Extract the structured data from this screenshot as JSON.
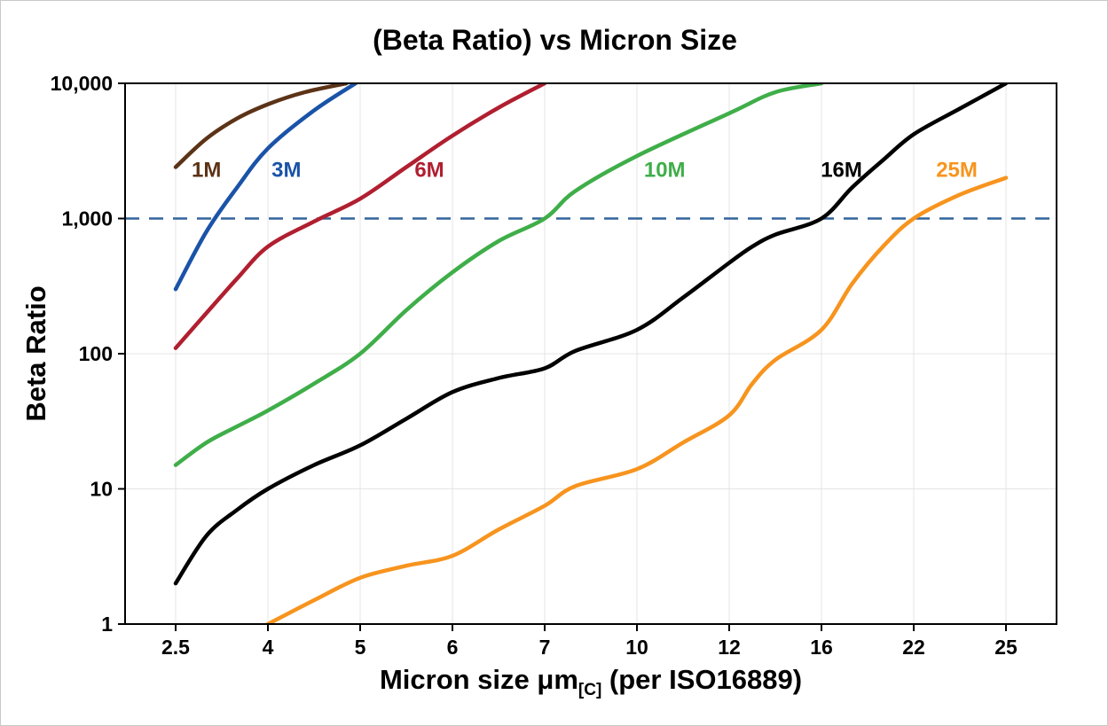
{
  "title": "(Beta Ratio) vs Micron Size",
  "axes": {
    "y_label": "Beta Ratio",
    "x_label_main": "Micron size μm",
    "x_label_sub": "[C]",
    "x_label_tail": " (per ISO16889)"
  },
  "chart_data": {
    "type": "line",
    "title": "(Beta Ratio) vs Micron Size",
    "xlabel": "Micron size μm[C] (per ISO16889)",
    "ylabel": "Beta Ratio",
    "y_scale": "log",
    "ylim": [
      1,
      10000
    ],
    "x_ticks": [
      2.5,
      4,
      5,
      6,
      7,
      10,
      12,
      16,
      22,
      25
    ],
    "x_tick_labels": [
      "2.5",
      "4",
      "5",
      "6",
      "7",
      "10",
      "12",
      "16",
      "22",
      "25"
    ],
    "y_ticks": [
      1,
      10,
      100,
      1000,
      10000
    ],
    "y_tick_labels": [
      "1",
      "10",
      "100",
      "1,000",
      "10,000"
    ],
    "grid": "on",
    "grid_color": "#e4e4e4",
    "reference_line": {
      "value": 1000,
      "color": "#31639C",
      "dash": "16 11",
      "width": 2.5
    },
    "series": [
      {
        "name": "1M",
        "color": "#5C3317",
        "points": [
          [
            2.5,
            2400
          ],
          [
            3,
            3900
          ],
          [
            3.5,
            5500
          ],
          [
            4,
            7000
          ],
          [
            4.4,
            8600
          ],
          [
            4.85,
            10000
          ]
        ]
      },
      {
        "name": "3M",
        "color": "#1A53A8",
        "points": [
          [
            2.5,
            300
          ],
          [
            3,
            800
          ],
          [
            3.5,
            1700
          ],
          [
            4,
            3300
          ],
          [
            4.5,
            6300
          ],
          [
            4.95,
            10000
          ]
        ]
      },
      {
        "name": "6M",
        "color": "#B01F30",
        "points": [
          [
            2.5,
            110
          ],
          [
            3,
            200
          ],
          [
            3.5,
            360
          ],
          [
            4,
            620
          ],
          [
            4.5,
            950
          ],
          [
            5,
            1400
          ],
          [
            5.5,
            2400
          ],
          [
            6,
            4100
          ],
          [
            6.5,
            6600
          ],
          [
            7,
            10000
          ]
        ]
      },
      {
        "name": "10M",
        "color": "#3FAE49",
        "points": [
          [
            2.5,
            15
          ],
          [
            3,
            22
          ],
          [
            3.5,
            29
          ],
          [
            4,
            38
          ],
          [
            4.5,
            60
          ],
          [
            5,
            100
          ],
          [
            5.5,
            210
          ],
          [
            6,
            400
          ],
          [
            6.5,
            680
          ],
          [
            7,
            1000
          ],
          [
            8,
            1600
          ],
          [
            10,
            2900
          ],
          [
            12,
            6000
          ],
          [
            14,
            8600
          ],
          [
            16,
            10000
          ]
        ]
      },
      {
        "name": "16M",
        "color": "#000000",
        "points": [
          [
            2.5,
            2
          ],
          [
            3,
            4.5
          ],
          [
            3.5,
            7
          ],
          [
            4,
            10
          ],
          [
            4.5,
            15
          ],
          [
            5,
            21
          ],
          [
            5.5,
            33
          ],
          [
            6,
            52
          ],
          [
            6.5,
            66
          ],
          [
            7,
            78
          ],
          [
            8,
            105
          ],
          [
            10,
            150
          ],
          [
            11,
            260
          ],
          [
            12,
            470
          ],
          [
            13,
            620
          ],
          [
            14,
            760
          ],
          [
            16,
            1000
          ],
          [
            18,
            1700
          ],
          [
            20,
            2700
          ],
          [
            22,
            4200
          ],
          [
            23.5,
            6500
          ],
          [
            25,
            10000
          ]
        ]
      },
      {
        "name": "25M",
        "color": "#F7941E",
        "points": [
          [
            4,
            1
          ],
          [
            4.5,
            1.5
          ],
          [
            5,
            2.2
          ],
          [
            5.5,
            2.7
          ],
          [
            6,
            3.2
          ],
          [
            6.5,
            5
          ],
          [
            7,
            7.5
          ],
          [
            8,
            10.5
          ],
          [
            10,
            14
          ],
          [
            11,
            22
          ],
          [
            12,
            35
          ],
          [
            13,
            60
          ],
          [
            14,
            90
          ],
          [
            16,
            150
          ],
          [
            18,
            330
          ],
          [
            20,
            620
          ],
          [
            22,
            1000
          ],
          [
            23.5,
            1500
          ],
          [
            25,
            2000
          ]
        ]
      }
    ],
    "labels": [
      {
        "text": "1M",
        "x": 3.0,
        "y": 2300,
        "color": "#5C3317"
      },
      {
        "text": "3M",
        "x": 4.2,
        "y": 2300,
        "color": "#1A53A8"
      },
      {
        "text": "6M",
        "x": 5.75,
        "y": 2300,
        "color": "#B01F30"
      },
      {
        "text": "10M",
        "x": 10.6,
        "y": 2300,
        "color": "#3FAE49"
      },
      {
        "text": "16M",
        "x": 17.3,
        "y": 2300,
        "color": "#000000"
      },
      {
        "text": "25M",
        "x": 23.4,
        "y": 2300,
        "color": "#F7941E"
      }
    ]
  }
}
